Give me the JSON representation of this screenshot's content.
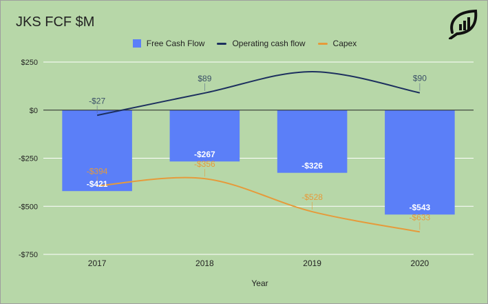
{
  "title": "JKS FCF $M",
  "colors": {
    "background": "#b7d7a8",
    "bar": "#5b7ff8",
    "operating": "#1c2f5e",
    "capex": "#e69a3a",
    "axis_text": "#222222",
    "grid": "#ffffff"
  },
  "logo": {
    "icon": "leaf-chart-logo"
  },
  "chart_data": {
    "type": "bar",
    "categories": [
      "2017",
      "2018",
      "2019",
      "2020"
    ],
    "xlabel": "Year",
    "ylabel": "",
    "ylim": [
      -750,
      250
    ],
    "y_ticks": [
      250,
      0,
      -250,
      -500,
      -750
    ],
    "y_tick_labels": [
      "$250",
      "$0",
      "-$250",
      "-$500",
      "-$750"
    ],
    "grid": true,
    "legend_position": "top",
    "series": [
      {
        "name": "Free Cash Flow",
        "type": "bar",
        "values": [
          -421,
          -267,
          -326,
          -543
        ],
        "labels": [
          "-$421",
          "-$267",
          "-$326",
          "-$543"
        ]
      },
      {
        "name": "Operating cash flow",
        "type": "line",
        "smooth": true,
        "values": [
          -27,
          89,
          200,
          90
        ],
        "labels": [
          "-$27",
          "$89",
          "",
          "$90"
        ]
      },
      {
        "name": "Capex",
        "type": "line",
        "smooth": true,
        "values": [
          -394,
          -356,
          -528,
          -633
        ],
        "labels": [
          "-$394",
          "-$356",
          "-$528",
          "-$633"
        ]
      }
    ]
  }
}
